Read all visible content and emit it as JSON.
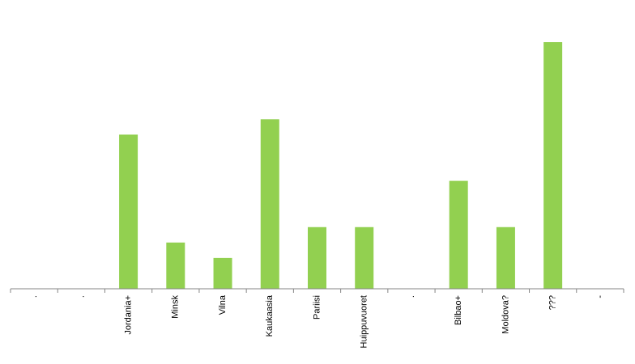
{
  "chart_data": {
    "type": "bar",
    "categories": [
      ".",
      ".",
      "Jordania+",
      "Minsk",
      "Vilna",
      "Kaukaasia",
      "Pariisi",
      "Huippuvuoret",
      ".",
      "Bilbao+",
      "Moldova?",
      "???",
      "-"
    ],
    "values": [
      0,
      0,
      10,
      3,
      2,
      11,
      4,
      4,
      0,
      7,
      4,
      16,
      0
    ],
    "color": "#92d050",
    "ylim": [
      0,
      17
    ]
  }
}
